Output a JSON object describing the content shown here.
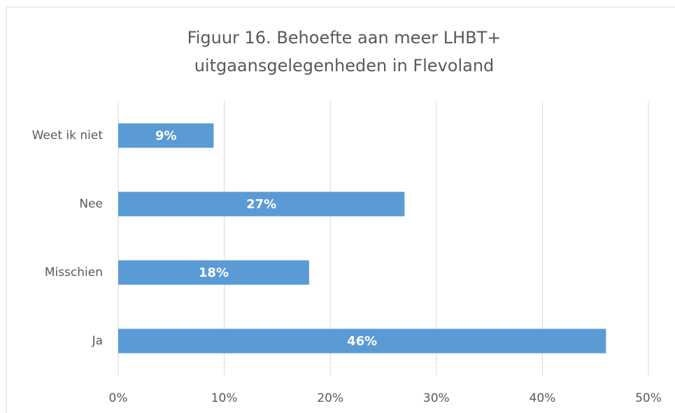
{
  "chart_data": {
    "type": "barh",
    "title": [
      "Figuur 16.  Behoefte aan meer LHBT+",
      "uitgaansgelegenheden in Flevoland"
    ],
    "categories": [
      "Weet ik niet",
      "Nee",
      "Misschien",
      "Ja"
    ],
    "values": [
      9,
      27,
      18,
      46
    ],
    "value_labels": [
      "9%",
      "27%",
      "18%",
      "46%"
    ],
    "color": "#5b9bd5",
    "xlim": [
      0,
      50
    ],
    "xticks": [
      {
        "value": 0,
        "label": "0%"
      },
      {
        "value": 10,
        "label": "10%"
      },
      {
        "value": 20,
        "label": "20%"
      },
      {
        "value": 30,
        "label": "30%"
      },
      {
        "value": 40,
        "label": "40%"
      },
      {
        "value": 50,
        "label": "50%"
      }
    ],
    "grid": true
  }
}
